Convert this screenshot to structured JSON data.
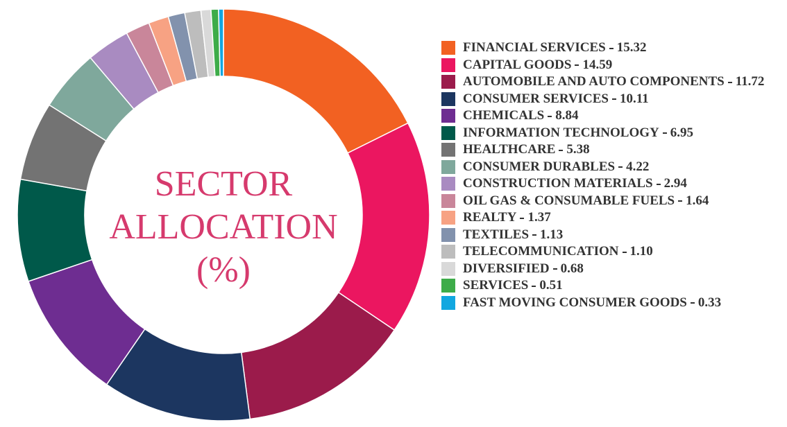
{
  "chart_data": {
    "type": "donut",
    "title": "SECTOR ALLOCATION (%)",
    "categories": [
      "FINANCIAL SERVICES",
      "CAPITAL GOODS",
      "AUTOMOBILE AND AUTO COMPONENTS",
      "CONSUMER SERVICES",
      "CHEMICALS",
      "INFORMATION TECHNOLOGY",
      "HEALTHCARE",
      "CONSUMER DURABLES",
      "CONSTRUCTION MATERIALS",
      "OIL GAS & CONSUMABLE FUELS",
      "REALTY",
      "TEXTILES",
      "TELECOMMUNICATION",
      "DIVERSIFIED",
      "SERVICES",
      "FAST MOVING CONSUMER GOODS"
    ],
    "values": [
      15.32,
      14.59,
      11.72,
      10.11,
      8.84,
      6.95,
      5.38,
      4.22,
      2.94,
      1.64,
      1.37,
      1.13,
      1.1,
      0.68,
      0.51,
      0.33
    ],
    "value_labels": [
      "15.32",
      "14.59",
      "11.72",
      "10.11",
      "8.84",
      "6.95",
      "5.38",
      "4.22",
      "2.94",
      "1.64",
      "1.37",
      "1.13",
      "1.10",
      "0.68",
      "0.51",
      "0.33"
    ],
    "colors": [
      "#f26122",
      "#eb1660",
      "#9b1b4b",
      "#1c3660",
      "#6e2d91",
      "#00594a",
      "#737373",
      "#7fa89c",
      "#a98bc1",
      "#c9869a",
      "#f7a283",
      "#8292ad",
      "#bdbdbd",
      "#d9d9d9",
      "#3dac49",
      "#11a7e0"
    ],
    "title_color": "#d63a6d"
  }
}
